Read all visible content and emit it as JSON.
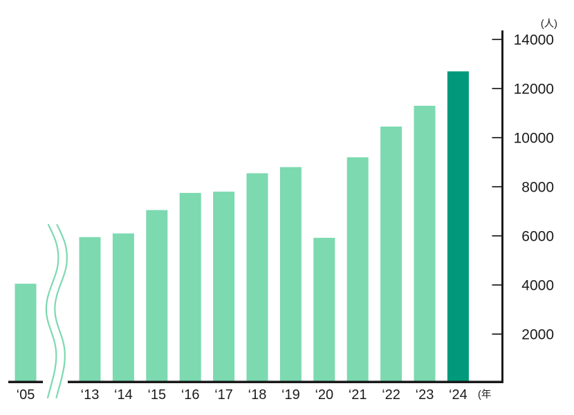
{
  "chart_data": {
    "type": "bar",
    "title": "",
    "y_unit_label": "(人)",
    "x_unit_label": "(年",
    "categories": [
      "‘05",
      "‘13",
      "‘14",
      "‘15",
      "‘16",
      "‘17",
      "‘18",
      "‘19",
      "‘20",
      "‘21",
      "‘22",
      "‘23",
      "‘24"
    ],
    "values": [
      4050,
      5950,
      6100,
      7050,
      7750,
      7800,
      8550,
      8800,
      5920,
      9200,
      10450,
      11300,
      12700
    ],
    "highlight_index": 12,
    "y_ticks": [
      2000,
      4000,
      6000,
      8000,
      10000,
      12000,
      14000
    ],
    "ylim": [
      0,
      14000
    ],
    "y_axis_side": "right",
    "grid": false,
    "legend_position": "none",
    "axis_break_between": [
      "‘05",
      "‘13"
    ],
    "colors": {
      "bar": "#7cd9b0",
      "highlight": "#00997c",
      "axis": "#1a1a1a",
      "tick": "#3c3c3c",
      "text": "#1a1a1a",
      "wave": "#7cd9b0"
    }
  }
}
